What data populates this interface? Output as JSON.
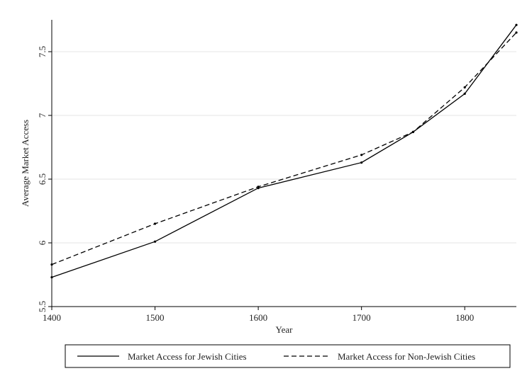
{
  "chart_data": {
    "type": "line",
    "title": "",
    "xlabel": "Year",
    "ylabel": "Average Market Access",
    "x": [
      1400,
      1500,
      1600,
      1700,
      1750,
      1800,
      1850
    ],
    "xlim": [
      1400,
      1850
    ],
    "ylim": [
      5.5,
      7.75
    ],
    "xticks": [
      "1400",
      "1500",
      "1600",
      "1700",
      "1800"
    ],
    "yticks": [
      "5.5",
      "6",
      "6.5",
      "7",
      "7.5"
    ],
    "grid": "horizontal",
    "legend_position": "bottom",
    "series": [
      {
        "name": "Market Access for Jewish Cities",
        "style": "solid",
        "color": "#000000",
        "values": [
          5.73,
          6.01,
          6.43,
          6.63,
          6.87,
          7.17,
          7.71
        ]
      },
      {
        "name": "Market Access for Non-Jewish Cities",
        "style": "dashed",
        "color": "#000000",
        "values": [
          5.83,
          6.15,
          6.44,
          6.69,
          6.87,
          7.22,
          7.65
        ]
      }
    ]
  }
}
